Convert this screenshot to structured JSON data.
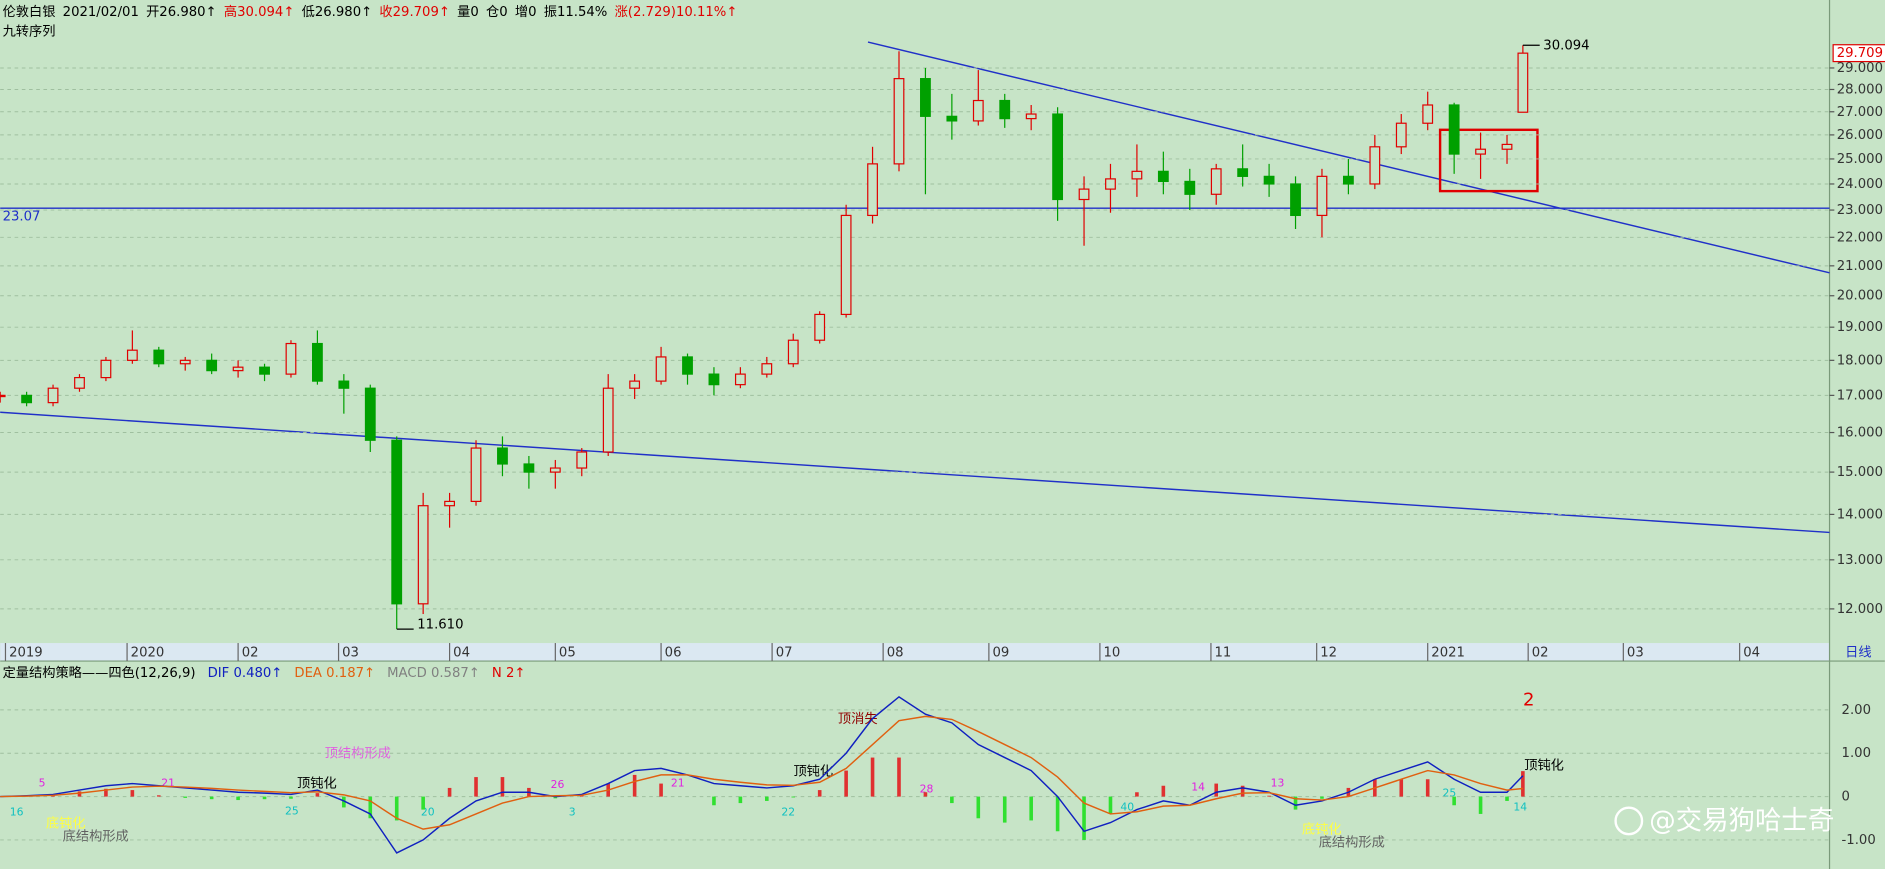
{
  "header": {
    "name": "伦敦白银",
    "date": "2021/02/01",
    "indicator": "九转序列",
    "fields": [
      {
        "text": "开26.980↑",
        "color": "#000000"
      },
      {
        "text": "高30.094↑",
        "color": "#e00000"
      },
      {
        "text": "低26.980↑",
        "color": "#000000"
      },
      {
        "text": "收29.709↑",
        "color": "#e00000"
      },
      {
        "text": "量0",
        "color": "#000000"
      },
      {
        "text": "仓0",
        "color": "#000000"
      },
      {
        "text": "增0",
        "color": "#000000"
      },
      {
        "text": "振11.54%",
        "color": "#000000"
      },
      {
        "text": "涨(2.729)10.11%↑",
        "color": "#e00000"
      }
    ]
  },
  "chart_data": [
    {
      "type": "candlestick",
      "log_scale": true,
      "grid": true,
      "up_color": "#e00000",
      "down_color": "#00a000",
      "period_label": "日线",
      "x": [
        0,
        5,
        10,
        15,
        20,
        25,
        30,
        35,
        40,
        45,
        50,
        55,
        60,
        65,
        70,
        75,
        80,
        85,
        90,
        95,
        100,
        105,
        110,
        115,
        120,
        125,
        130,
        135,
        140,
        145,
        150,
        155,
        160,
        165,
        170,
        175,
        180,
        185,
        190,
        195,
        200,
        205,
        210,
        215,
        220,
        225,
        230,
        235,
        240,
        245,
        250,
        255,
        260,
        265,
        270,
        275,
        280,
        285,
        288
      ],
      "open": [
        17.0,
        17.0,
        16.8,
        17.2,
        17.5,
        18.0,
        18.3,
        17.9,
        18.0,
        17.7,
        17.8,
        17.6,
        18.5,
        17.4,
        17.2,
        15.8,
        12.1,
        14.2,
        14.3,
        15.6,
        15.2,
        15.0,
        15.1,
        15.5,
        17.2,
        17.4,
        18.1,
        17.6,
        17.3,
        17.6,
        17.9,
        18.6,
        19.4,
        22.8,
        24.8,
        28.5,
        26.8,
        26.6,
        27.5,
        26.7,
        26.9,
        23.4,
        23.8,
        24.2,
        24.5,
        24.1,
        23.6,
        24.6,
        24.3,
        24.0,
        22.8,
        24.3,
        24.0,
        25.5,
        26.5,
        27.3,
        25.2,
        25.4,
        26.98
      ],
      "high": [
        17.1,
        17.1,
        17.3,
        17.6,
        18.1,
        18.9,
        18.4,
        18.1,
        18.2,
        18.0,
        17.9,
        18.6,
        18.9,
        17.6,
        17.3,
        15.9,
        14.5,
        14.5,
        15.8,
        15.9,
        15.4,
        15.3,
        15.6,
        17.6,
        17.6,
        18.4,
        18.2,
        17.8,
        17.8,
        18.1,
        18.8,
        19.5,
        23.2,
        25.5,
        29.8,
        29.0,
        27.8,
        28.9,
        27.8,
        27.3,
        27.2,
        24.3,
        24.8,
        25.6,
        25.3,
        24.6,
        24.8,
        25.6,
        24.8,
        24.3,
        24.6,
        25.0,
        26.0,
        26.9,
        27.9,
        27.4,
        26.1,
        26.0,
        30.094
      ],
      "low": [
        16.8,
        16.7,
        16.7,
        17.1,
        17.4,
        17.9,
        17.8,
        17.7,
        17.6,
        17.5,
        17.4,
        17.5,
        17.3,
        16.5,
        15.5,
        11.61,
        11.9,
        13.7,
        14.2,
        14.9,
        14.6,
        14.6,
        14.9,
        15.4,
        16.9,
        17.3,
        17.3,
        17.0,
        17.2,
        17.5,
        17.8,
        18.5,
        19.3,
        22.5,
        24.5,
        23.6,
        25.8,
        26.4,
        26.3,
        26.2,
        22.6,
        21.7,
        22.9,
        23.5,
        23.6,
        23.0,
        23.2,
        23.9,
        23.5,
        22.3,
        22.0,
        23.6,
        23.8,
        25.2,
        26.2,
        24.4,
        24.2,
        24.8,
        26.98
      ],
      "close": [
        17.0,
        16.8,
        17.2,
        17.5,
        18.0,
        18.3,
        17.9,
        18.0,
        17.7,
        17.8,
        17.6,
        18.5,
        17.4,
        17.2,
        15.8,
        12.1,
        14.2,
        14.3,
        15.6,
        15.2,
        15.0,
        15.1,
        15.5,
        17.2,
        17.4,
        18.1,
        17.6,
        17.3,
        17.6,
        17.9,
        18.6,
        19.4,
        22.8,
        24.8,
        28.5,
        26.8,
        26.6,
        27.5,
        26.7,
        26.9,
        23.4,
        23.8,
        24.2,
        24.5,
        24.1,
        23.6,
        24.6,
        24.3,
        24.0,
        22.8,
        24.3,
        24.0,
        25.5,
        26.5,
        27.3,
        25.2,
        25.4,
        25.6,
        29.709
      ],
      "xlim": [
        0,
        346
      ],
      "ylim": [
        11.35,
        32.4
      ],
      "xticks": [
        {
          "value": 1,
          "label": "2019"
        },
        {
          "value": 24,
          "label": "2020"
        },
        {
          "value": 45,
          "label": "02"
        },
        {
          "value": 64,
          "label": "03"
        },
        {
          "value": 85,
          "label": "04"
        },
        {
          "value": 105,
          "label": "05"
        },
        {
          "value": 125,
          "label": "06"
        },
        {
          "value": 146,
          "label": "07"
        },
        {
          "value": 167,
          "label": "08"
        },
        {
          "value": 187,
          "label": "09"
        },
        {
          "value": 208,
          "label": "10"
        },
        {
          "value": 229,
          "label": "11"
        },
        {
          "value": 249,
          "label": "12"
        },
        {
          "value": 270,
          "label": "2021"
        },
        {
          "value": 289,
          "label": "02"
        },
        {
          "value": 307,
          "label": "03"
        },
        {
          "value": 329,
          "label": "04"
        }
      ],
      "yticks": [
        {
          "value": 12,
          "label": "12.000"
        },
        {
          "value": 13,
          "label": "13.000"
        },
        {
          "value": 14,
          "label": "14.000"
        },
        {
          "value": 15,
          "label": "15.000"
        },
        {
          "value": 16,
          "label": "16.000"
        },
        {
          "value": 17,
          "label": "17.000"
        },
        {
          "value": 18,
          "label": "18.000"
        },
        {
          "value": 19,
          "label": "19.000"
        },
        {
          "value": 20,
          "label": "20.000"
        },
        {
          "value": 21,
          "label": "21.000"
        },
        {
          "value": 22,
          "label": "22.000"
        },
        {
          "value": 23,
          "label": "23.000"
        },
        {
          "value": 24,
          "label": "24.000"
        },
        {
          "value": 25,
          "label": "25.000"
        },
        {
          "value": 26,
          "label": "26.000"
        },
        {
          "value": 27,
          "label": "27.000"
        },
        {
          "value": 28,
          "label": "28.000"
        },
        {
          "value": 29,
          "label": "29.000"
        }
      ],
      "hline": {
        "value": 23.07,
        "color": "#2030c8"
      },
      "high_label": {
        "value": 30.094
      },
      "low_label": {
        "value": 11.61,
        "label": "11.610"
      },
      "last_price": {
        "value": 29.709
      }
    },
    {
      "type": "macd",
      "title": "定量结构策略——四色(12,26,9)",
      "x": [
        0,
        5,
        10,
        15,
        20,
        25,
        30,
        35,
        40,
        45,
        50,
        55,
        60,
        65,
        70,
        75,
        80,
        85,
        90,
        95,
        100,
        105,
        110,
        115,
        120,
        125,
        130,
        135,
        140,
        145,
        150,
        155,
        160,
        165,
        170,
        175,
        180,
        185,
        190,
        195,
        200,
        205,
        210,
        215,
        220,
        225,
        230,
        235,
        240,
        245,
        250,
        255,
        260,
        265,
        270,
        275,
        280,
        285,
        288
      ],
      "xlim": [
        0,
        346
      ],
      "ylim": [
        -1.67,
        3.07
      ],
      "yticks": [
        {
          "value": -1,
          "label": "-1.00"
        },
        0,
        {
          "value": 1,
          "label": "1.00"
        },
        {
          "value": 2,
          "label": "2.00"
        }
      ],
      "series": [
        {
          "label": "DIF 0.480↑",
          "color": "#1020c0",
          "values": [
            0,
            0.02,
            0.05,
            0.15,
            0.25,
            0.3,
            0.25,
            0.2,
            0.15,
            0.1,
            0.08,
            0.05,
            0.15,
            -0.1,
            -0.4,
            -1.3,
            -1.0,
            -0.5,
            -0.1,
            0.1,
            0.1,
            0,
            0.05,
            0.3,
            0.6,
            0.65,
            0.5,
            0.3,
            0.25,
            0.2,
            0.25,
            0.4,
            1.0,
            1.8,
            2.3,
            1.9,
            1.7,
            1.2,
            0.9,
            0.6,
            0.0,
            -0.8,
            -0.6,
            -0.3,
            -0.1,
            -0.2,
            0.1,
            0.2,
            0.1,
            -0.2,
            -0.1,
            0.1,
            0.4,
            0.6,
            0.8,
            0.4,
            0.1,
            0.1,
            0.48
          ]
        },
        {
          "label": "DEA 0.187↑",
          "color": "#e06010",
          "values": [
            0,
            0.01,
            0.03,
            0.08,
            0.15,
            0.22,
            0.24,
            0.22,
            0.19,
            0.15,
            0.12,
            0.09,
            0.11,
            0.04,
            -0.1,
            -0.5,
            -0.75,
            -0.65,
            -0.4,
            -0.15,
            0,
            0.02,
            0.03,
            0.15,
            0.35,
            0.5,
            0.5,
            0.4,
            0.33,
            0.27,
            0.26,
            0.33,
            0.65,
            1.2,
            1.75,
            1.85,
            1.78,
            1.5,
            1.2,
            0.9,
            0.45,
            -0.15,
            -0.4,
            -0.35,
            -0.22,
            -0.2,
            -0.05,
            0.08,
            0.09,
            -0.05,
            -0.08,
            0.0,
            0.2,
            0.4,
            0.6,
            0.5,
            0.3,
            0.15,
            0.187
          ]
        }
      ],
      "histogram": {
        "label": "MACD 0.587↑",
        "label_color": "#808080",
        "up_color": "#e03030",
        "down_color": "#30e030",
        "values": [
          0,
          0.02,
          0.04,
          0.12,
          0.18,
          0.15,
          0.03,
          -0.03,
          -0.06,
          -0.08,
          -0.06,
          -0.05,
          0.08,
          -0.25,
          -0.5,
          -0.55,
          -0.3,
          0.2,
          0.45,
          0.45,
          0.2,
          -0.04,
          0.04,
          0.3,
          0.5,
          0.3,
          0,
          -0.2,
          -0.15,
          -0.1,
          -0.02,
          0.15,
          0.6,
          0.9,
          0.9,
          0.1,
          -0.15,
          -0.5,
          -0.6,
          -0.55,
          -0.8,
          -1.0,
          -0.4,
          0.1,
          0.25,
          0,
          0.3,
          0.25,
          0.02,
          -0.3,
          -0.05,
          0.2,
          0.4,
          0.4,
          0.4,
          -0.2,
          -0.4,
          -0.1,
          0.587
        ]
      },
      "n_label": {
        "text": "N 2↑",
        "color": "#e00000"
      },
      "annotations": [
        "2",
        "顶消失",
        "顶钝化",
        "顶钝化",
        "顶钝化",
        "底钝化",
        "底钝化",
        "顶结构形成",
        "底结构形成",
        "底结构形成",
        "5",
        "16",
        "21",
        "25",
        "26",
        "3",
        "20",
        "21",
        "22",
        "28",
        "40",
        "14",
        "13",
        "25",
        "14"
      ]
    }
  ],
  "watermark": "@交易狗哈士奇"
}
